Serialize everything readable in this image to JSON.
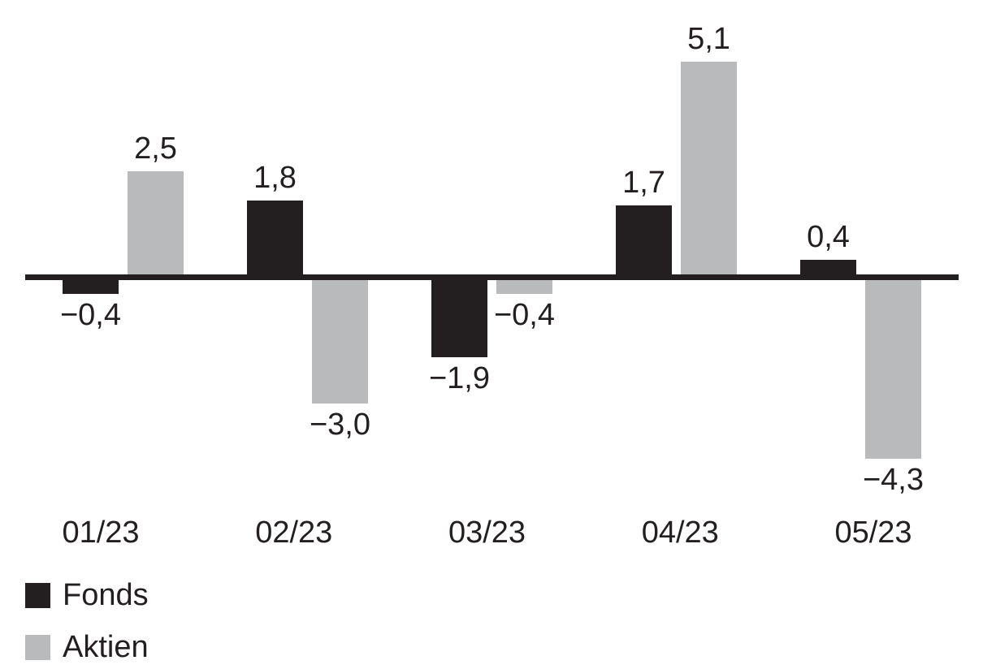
{
  "background_color": "#ffffff",
  "text_color": "#231f20",
  "chart_data": {
    "type": "bar",
    "title": "",
    "xlabel": "",
    "ylabel": "",
    "categories": [
      "01/23",
      "02/23",
      "03/23",
      "04/23",
      "05/23"
    ],
    "series": [
      {
        "name": "Fonds",
        "key": "fonds",
        "color": "#231f20",
        "values": [
          -0.4,
          1.8,
          -1.9,
          1.7,
          0.4
        ],
        "labels": [
          "−0,4",
          "1,8",
          "−1,9",
          "1,7",
          "0,4"
        ]
      },
      {
        "name": "Aktien",
        "key": "aktien",
        "color": "#b9babc",
        "values": [
          2.5,
          -3.0,
          -0.4,
          5.1,
          -4.3
        ],
        "labels": [
          "2,5",
          "−3,0",
          "−0,4",
          "5,1",
          "−4,3"
        ]
      }
    ],
    "ylim": [
      -4.3,
      5.1
    ],
    "baseline": 0,
    "grid": false,
    "y_axis_visible": false,
    "value_labels_visible": true,
    "decimal_format": "comma",
    "legend_position": "bottom-left"
  }
}
